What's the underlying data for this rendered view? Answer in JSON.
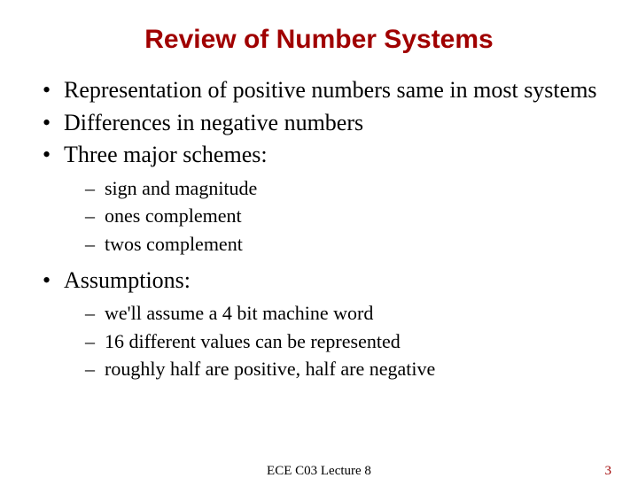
{
  "title": {
    "text": "Review of Number Systems",
    "color": "#a00000",
    "font_family": "Arial, Helvetica, sans-serif",
    "font_size_pt": 30,
    "font_weight": "bold"
  },
  "body": {
    "font_family": "Times New Roman, Times, serif",
    "font_size_pt_level1": 26,
    "font_size_pt_level2": 22,
    "text_color": "#000000",
    "bullets": [
      {
        "text": "Representation of positive numbers same in most systems",
        "children": []
      },
      {
        "text": "Differences in negative numbers",
        "children": []
      },
      {
        "text": "Three major schemes:",
        "children": [
          "sign and magnitude",
          "ones complement",
          "twos complement"
        ]
      },
      {
        "text": "Assumptions:",
        "children": [
          "we'll assume a 4 bit machine word",
          "16 different values can be represented",
          "roughly half are positive, half are negative"
        ]
      }
    ]
  },
  "footer": {
    "center": "ECE C03 Lecture 8",
    "page_number": "3",
    "font_size_pt": 15,
    "page_number_color": "#a00000"
  },
  "background_color": "#ffffff"
}
